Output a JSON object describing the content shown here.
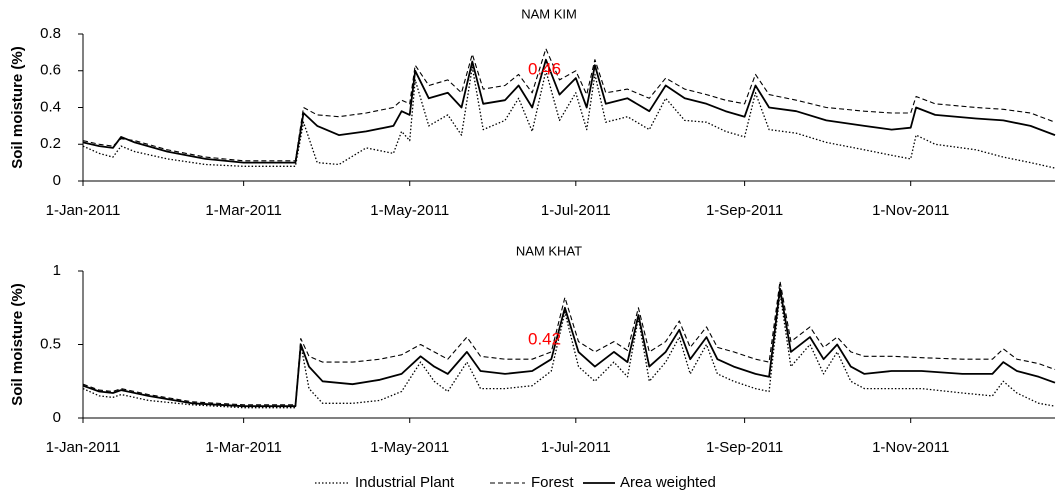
{
  "chart_data": [
    {
      "type": "line",
      "title": "NAM KIM",
      "y_label": "Soil moisture (%)",
      "x": [
        "2011-01-01",
        "2011-01-07",
        "2011-01-12",
        "2011-01-15",
        "2011-01-20",
        "2011-02-01",
        "2011-02-15",
        "2011-03-01",
        "2011-03-15",
        "2011-03-20",
        "2011-03-23",
        "2011-03-28",
        "2011-04-05",
        "2011-04-15",
        "2011-04-25",
        "2011-04-28",
        "2011-05-01",
        "2011-05-03",
        "2011-05-08",
        "2011-05-15",
        "2011-05-20",
        "2011-05-24",
        "2011-05-28",
        "2011-06-05",
        "2011-06-10",
        "2011-06-15",
        "2011-06-20",
        "2011-06-25",
        "2011-07-01",
        "2011-07-05",
        "2011-07-08",
        "2011-07-12",
        "2011-07-20",
        "2011-07-28",
        "2011-08-03",
        "2011-08-10",
        "2011-08-18",
        "2011-08-25",
        "2011-09-01",
        "2011-09-05",
        "2011-09-10",
        "2011-09-20",
        "2011-10-01",
        "2011-10-15",
        "2011-10-25",
        "2011-11-01",
        "2011-11-03",
        "2011-11-10",
        "2011-11-25",
        "2011-12-05",
        "2011-12-15",
        "2011-12-24"
      ],
      "series": [
        {
          "name": "Industrial Plant",
          "color": "#000000",
          "dash": "dotted",
          "values": [
            0.19,
            0.15,
            0.13,
            0.19,
            0.16,
            0.12,
            0.09,
            0.08,
            0.08,
            0.08,
            0.32,
            0.1,
            0.09,
            0.18,
            0.15,
            0.27,
            0.22,
            0.55,
            0.3,
            0.36,
            0.25,
            0.62,
            0.28,
            0.33,
            0.45,
            0.27,
            0.6,
            0.33,
            0.48,
            0.28,
            0.58,
            0.32,
            0.35,
            0.28,
            0.45,
            0.33,
            0.32,
            0.27,
            0.24,
            0.48,
            0.28,
            0.26,
            0.21,
            0.17,
            0.14,
            0.12,
            0.25,
            0.2,
            0.17,
            0.13,
            0.1,
            0.07
          ]
        },
        {
          "name": "Forest",
          "color": "#000000",
          "dash": "dashed",
          "values": [
            0.22,
            0.2,
            0.19,
            0.23,
            0.22,
            0.17,
            0.13,
            0.11,
            0.11,
            0.11,
            0.4,
            0.36,
            0.35,
            0.37,
            0.4,
            0.44,
            0.42,
            0.63,
            0.52,
            0.55,
            0.48,
            0.69,
            0.5,
            0.52,
            0.58,
            0.48,
            0.72,
            0.55,
            0.6,
            0.47,
            0.66,
            0.48,
            0.5,
            0.45,
            0.56,
            0.5,
            0.47,
            0.44,
            0.42,
            0.58,
            0.47,
            0.44,
            0.4,
            0.38,
            0.37,
            0.37,
            0.46,
            0.42,
            0.4,
            0.39,
            0.37,
            0.32
          ]
        },
        {
          "name": "Area weighted",
          "color": "#000000",
          "dash": "solid",
          "values": [
            0.21,
            0.19,
            0.18,
            0.24,
            0.21,
            0.16,
            0.12,
            0.1,
            0.1,
            0.1,
            0.37,
            0.3,
            0.25,
            0.27,
            0.3,
            0.38,
            0.36,
            0.6,
            0.45,
            0.48,
            0.4,
            0.65,
            0.42,
            0.44,
            0.52,
            0.4,
            0.66,
            0.47,
            0.56,
            0.4,
            0.63,
            0.42,
            0.45,
            0.38,
            0.52,
            0.45,
            0.42,
            0.38,
            0.35,
            0.52,
            0.4,
            0.38,
            0.33,
            0.3,
            0.28,
            0.29,
            0.4,
            0.36,
            0.34,
            0.33,
            0.3,
            0.25
          ]
        }
      ],
      "xlim": [
        "2011-01-01",
        "2011-12-24"
      ],
      "xticks": [
        {
          "value": "2011-01-01",
          "label": "1-Jan-2011"
        },
        {
          "value": "2011-03-01",
          "label": "1-Mar-2011"
        },
        {
          "value": "2011-05-01",
          "label": "1-May-2011"
        },
        {
          "value": "2011-07-01",
          "label": "1-Jul-2011"
        },
        {
          "value": "2011-09-01",
          "label": "1-Sep-2011"
        },
        {
          "value": "2011-11-01",
          "label": "1-Nov-2011"
        }
      ],
      "ylim": [
        0,
        0.8
      ],
      "yticks": [
        0,
        0.2,
        0.4,
        0.6,
        0.8
      ],
      "annotation": "0.46",
      "annotation_color": "#ff0000",
      "legend": "bottom"
    },
    {
      "type": "line",
      "title": "NAM KHAT",
      "y_label": "Soil moisture (%)",
      "x": [
        "2011-01-01",
        "2011-01-07",
        "2011-01-12",
        "2011-01-15",
        "2011-01-25",
        "2011-02-10",
        "2011-03-01",
        "2011-03-20",
        "2011-03-22",
        "2011-03-25",
        "2011-03-30",
        "2011-04-10",
        "2011-04-20",
        "2011-04-28",
        "2011-05-05",
        "2011-05-10",
        "2011-05-15",
        "2011-05-22",
        "2011-05-27",
        "2011-06-05",
        "2011-06-15",
        "2011-06-22",
        "2011-06-27",
        "2011-07-02",
        "2011-07-08",
        "2011-07-15",
        "2011-07-20",
        "2011-07-24",
        "2011-07-28",
        "2011-08-03",
        "2011-08-08",
        "2011-08-12",
        "2011-08-18",
        "2011-08-22",
        "2011-08-28",
        "2011-09-05",
        "2011-09-10",
        "2011-09-14",
        "2011-09-18",
        "2011-09-25",
        "2011-09-30",
        "2011-10-05",
        "2011-10-10",
        "2011-10-15",
        "2011-10-25",
        "2011-11-05",
        "2011-11-20",
        "2011-12-01",
        "2011-12-05",
        "2011-12-10",
        "2011-12-18",
        "2011-12-24"
      ],
      "series": [
        {
          "color": "#000000",
          "dash": "dotted",
          "values": [
            0.2,
            0.15,
            0.14,
            0.16,
            0.12,
            0.09,
            0.07,
            0.07,
            0.5,
            0.2,
            0.1,
            0.1,
            0.12,
            0.18,
            0.38,
            0.25,
            0.18,
            0.38,
            0.2,
            0.2,
            0.22,
            0.32,
            0.72,
            0.35,
            0.25,
            0.38,
            0.28,
            0.68,
            0.25,
            0.38,
            0.55,
            0.3,
            0.5,
            0.3,
            0.25,
            0.2,
            0.18,
            0.85,
            0.35,
            0.5,
            0.3,
            0.45,
            0.25,
            0.2,
            0.2,
            0.2,
            0.17,
            0.15,
            0.25,
            0.17,
            0.1,
            0.08
          ]
        },
        {
          "color": "#000000",
          "dash": "dashed",
          "values": [
            0.23,
            0.19,
            0.18,
            0.2,
            0.16,
            0.11,
            0.09,
            0.09,
            0.54,
            0.42,
            0.38,
            0.38,
            0.4,
            0.43,
            0.5,
            0.45,
            0.4,
            0.55,
            0.42,
            0.4,
            0.4,
            0.45,
            0.82,
            0.52,
            0.45,
            0.52,
            0.46,
            0.75,
            0.45,
            0.52,
            0.66,
            0.48,
            0.62,
            0.48,
            0.45,
            0.4,
            0.38,
            0.93,
            0.52,
            0.62,
            0.48,
            0.55,
            0.45,
            0.42,
            0.42,
            0.41,
            0.4,
            0.4,
            0.47,
            0.4,
            0.37,
            0.33
          ]
        },
        {
          "color": "#000000",
          "dash": "solid",
          "values": [
            0.22,
            0.18,
            0.17,
            0.19,
            0.15,
            0.1,
            0.08,
            0.08,
            0.5,
            0.35,
            0.25,
            0.23,
            0.26,
            0.3,
            0.42,
            0.35,
            0.3,
            0.45,
            0.32,
            0.3,
            0.32,
            0.4,
            0.75,
            0.45,
            0.35,
            0.45,
            0.38,
            0.7,
            0.35,
            0.45,
            0.6,
            0.4,
            0.55,
            0.4,
            0.35,
            0.3,
            0.28,
            0.88,
            0.45,
            0.55,
            0.4,
            0.5,
            0.35,
            0.3,
            0.32,
            0.32,
            0.3,
            0.3,
            0.38,
            0.32,
            0.28,
            0.24
          ]
        }
      ],
      "xlim": [
        "2011-01-01",
        "2011-12-24"
      ],
      "xticks": [
        {
          "value": "2011-01-01",
          "label": "1-Jan-2011"
        },
        {
          "value": "2011-03-01",
          "label": "1-Mar-2011"
        },
        {
          "value": "2011-05-01",
          "label": "1-May-2011"
        },
        {
          "value": "2011-07-01",
          "label": "1-Jul-2011"
        },
        {
          "value": "2011-09-01",
          "label": "1-Sep-2011"
        },
        {
          "value": "2011-11-01",
          "label": "1-Nov-2011"
        }
      ],
      "ylim": [
        0,
        1
      ],
      "yticks": [
        0,
        0.5,
        1
      ],
      "annotation": "0.42",
      "annotation_color": "#ff0000"
    }
  ]
}
